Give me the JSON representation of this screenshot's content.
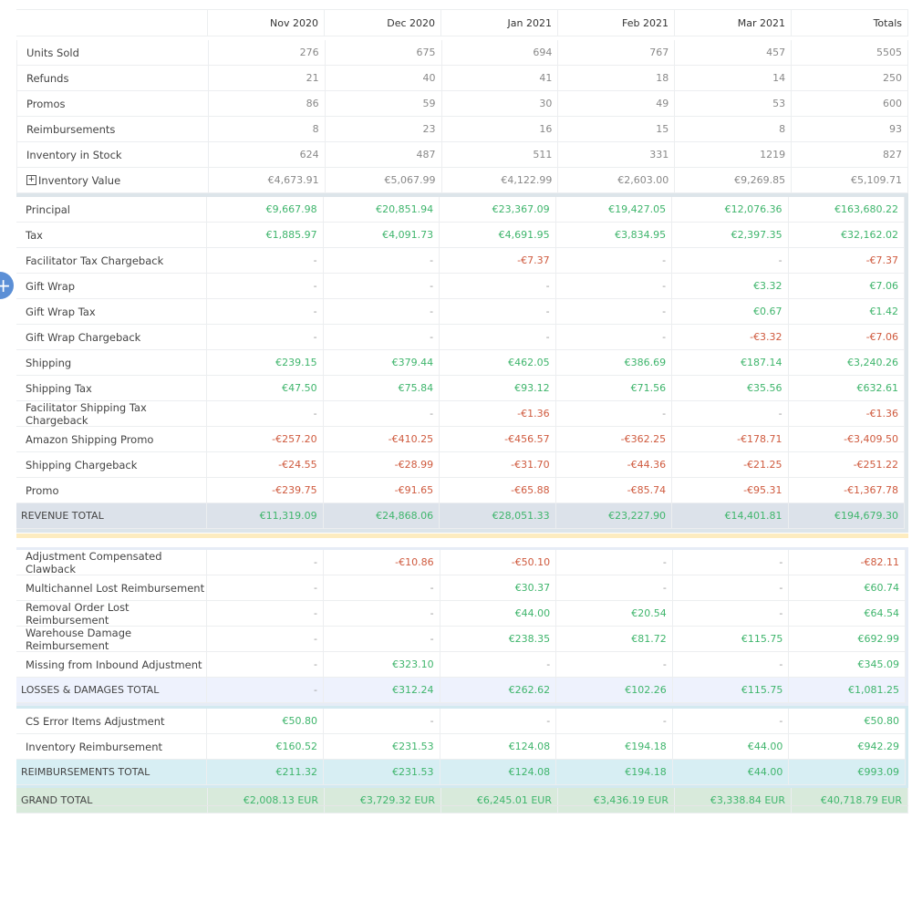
{
  "columns": [
    "Nov 2020",
    "Dec 2020",
    "Jan 2021",
    "Feb 2021",
    "Mar 2021",
    "Totals"
  ],
  "sections": [
    {
      "rows": [
        {
          "label": "Units Sold",
          "cells": [
            276,
            675,
            694,
            767,
            457,
            5505
          ]
        },
        {
          "label": "Refunds",
          "cells": [
            21,
            40,
            41,
            18,
            14,
            250
          ]
        },
        {
          "label": "Promos",
          "cells": [
            86,
            59,
            30,
            49,
            53,
            600
          ]
        },
        {
          "label": "Reimbursements",
          "cells": [
            8,
            23,
            16,
            15,
            8,
            93
          ]
        },
        {
          "label": "Inventory in Stock",
          "cells": [
            624,
            487,
            511,
            331,
            1219,
            827
          ]
        },
        {
          "label": "Inventory Value",
          "cells": [
            "€4,673.91",
            "€5,067.99",
            "€4,122.99",
            "€2,603.00",
            "€9,269.85",
            "€5,109.71"
          ]
        }
      ]
    },
    {
      "rows": [
        {
          "label": "Principal",
          "cells": [
            "€9,667.98",
            "€20,851.94",
            "€23,367.09",
            "€19,427.05",
            "€12,076.36",
            "€163,680.22"
          ]
        },
        {
          "label": "Tax",
          "cells": [
            "€1,885.97",
            "€4,091.73",
            "€4,691.95",
            "€3,834.95",
            "€2,397.35",
            "€32,162.02"
          ]
        },
        {
          "label": "Facilitator Tax Chargeback",
          "cells": [
            "-",
            "-",
            "-€7.37",
            "-",
            "-",
            "-€7.37"
          ]
        },
        {
          "label": "Gift Wrap",
          "cells": [
            "-",
            "-",
            "-",
            "-",
            "€3.32",
            "€7.06"
          ]
        },
        {
          "label": "Gift Wrap Tax",
          "cells": [
            "-",
            "-",
            "-",
            "-",
            "€0.67",
            "€1.42"
          ]
        },
        {
          "label": "Gift Wrap Chargeback",
          "cells": [
            "-",
            "-",
            "-",
            "-",
            "-€3.32",
            "-€7.06"
          ]
        },
        {
          "label": "Shipping",
          "cells": [
            "€239.15",
            "€379.44",
            "€462.05",
            "€386.69",
            "€187.14",
            "€3,240.26"
          ]
        },
        {
          "label": "Shipping Tax",
          "cells": [
            "€47.50",
            "€75.84",
            "€93.12",
            "€71.56",
            "€35.56",
            "€632.61"
          ]
        },
        {
          "label": "Facilitator Shipping Tax Chargeback",
          "cells": [
            "-",
            "-",
            "-€1.36",
            "-",
            "-",
            "-€1.36"
          ]
        },
        {
          "label": "Amazon Shipping Promo",
          "cells": [
            "-€257.20",
            "-€410.25",
            "-€456.57",
            "-€362.25",
            "-€178.71",
            "-€3,409.50"
          ]
        },
        {
          "label": "Shipping Chargeback",
          "cells": [
            "-€24.55",
            "-€28.99",
            "-€31.70",
            "-€44.36",
            "-€21.25",
            "-€251.22"
          ]
        },
        {
          "label": "Promo",
          "cells": [
            "-€239.75",
            "-€91.65",
            "-€65.88",
            "-€85.74",
            "-€95.31",
            "-€1,367.78"
          ]
        }
      ],
      "total": {
        "label": "REVENUE TOTAL",
        "cells": [
          "€11,319.09",
          "€24,868.06",
          "€28,051.33",
          "€23,227.90",
          "€14,401.81",
          "€194,679.30"
        ]
      }
    },
    {
      "rows": [
        {
          "label": "Adjustment Compensated Clawback",
          "cells": [
            "-",
            "-€10.86",
            "-€50.10",
            "-",
            "-",
            "-€82.11"
          ]
        },
        {
          "label": "Multichannel Lost Reimbursement",
          "cells": [
            "-",
            "-",
            "€30.37",
            "-",
            "-",
            "€60.74"
          ]
        },
        {
          "label": "Removal Order Lost Reimbursement",
          "cells": [
            "-",
            "-",
            "€44.00",
            "€20.54",
            "-",
            "€64.54"
          ]
        },
        {
          "label": "Warehouse Damage Reimbursement",
          "cells": [
            "-",
            "-",
            "€238.35",
            "€81.72",
            "€115.75",
            "€692.99"
          ]
        },
        {
          "label": "Missing from Inbound Adjustment",
          "cells": [
            "-",
            "€323.10",
            "-",
            "-",
            "-",
            "€345.09"
          ]
        }
      ],
      "total": {
        "label": "LOSSES & DAMAGES TOTAL",
        "cells": [
          "-",
          "€312.24",
          "€262.62",
          "€102.26",
          "€115.75",
          "€1,081.25"
        ]
      }
    },
    {
      "rows": [
        {
          "label": "CS Error Items Adjustment",
          "cells": [
            "€50.80",
            "-",
            "-",
            "-",
            "-",
            "€50.80"
          ]
        },
        {
          "label": "Inventory Reimbursement",
          "cells": [
            "€160.52",
            "€231.53",
            "€124.08",
            "€194.18",
            "€44.00",
            "€942.29"
          ]
        }
      ],
      "total": {
        "label": "REIMBURSEMENTS TOTAL",
        "cells": [
          "€211.32",
          "€231.53",
          "€124.08",
          "€194.18",
          "€44.00",
          "€993.09"
        ]
      }
    }
  ],
  "grand_total": {
    "label": "GRAND TOTAL",
    "cells": [
      "€2,008.13 EUR",
      "€3,729.32 EUR",
      "€6,245.01 EUR",
      "€3,436.19 EUR",
      "€3,338.84 EUR",
      "€40,718.79 EUR"
    ]
  }
}
